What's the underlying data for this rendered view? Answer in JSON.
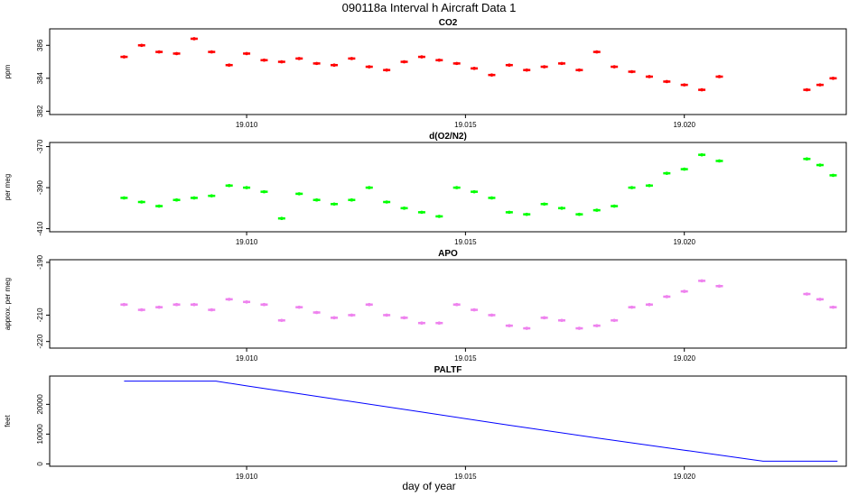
{
  "title": "090118a   Interval h Aircraft Data 1",
  "xlabel": "day of year",
  "chart_data": [
    {
      "type": "scatter",
      "title": "CO2",
      "ylabel": "ppm",
      "color": "#ff0000",
      "xlim": [
        19.0055,
        19.0237
      ],
      "ylim": [
        381.8,
        387.0
      ],
      "yticks": [
        "382",
        "384",
        "386"
      ],
      "xticks": [
        "19.010",
        "19.015",
        "19.020"
      ],
      "series": [
        {
          "x": [
            19.0072,
            19.0076,
            19.008,
            19.0084,
            19.0088,
            19.0092,
            19.0096,
            19.01,
            19.0104,
            19.0108,
            19.0112,
            19.0116,
            19.012,
            19.0124,
            19.0128,
            19.0132,
            19.0136,
            19.014,
            19.0144,
            19.0148,
            19.0152,
            19.0156,
            19.016,
            19.0164,
            19.0168,
            19.0172,
            19.0176,
            19.018,
            19.0184,
            19.0188,
            19.0192,
            19.0196,
            19.02,
            19.0204,
            19.0208,
            19.0228,
            19.0231,
            19.0234
          ],
          "y": [
            385.3,
            386.0,
            385.6,
            385.5,
            386.4,
            385.6,
            384.8,
            385.5,
            385.1,
            385.0,
            385.2,
            384.9,
            384.8,
            385.2,
            384.7,
            384.5,
            385.0,
            385.3,
            385.1,
            384.9,
            384.6,
            384.2,
            384.8,
            384.5,
            384.7,
            384.9,
            384.5,
            385.6,
            384.7,
            384.4,
            384.1,
            383.8,
            383.6,
            383.3,
            384.1,
            383.3,
            383.6,
            384.0
          ]
        }
      ]
    },
    {
      "type": "scatter",
      "title": "d(O2/N2)",
      "ylabel": "per meg",
      "color": "#00ff00",
      "xlim": [
        19.0055,
        19.0237
      ],
      "ylim": [
        -411.5,
        -368.0
      ],
      "yticks": [
        "-410",
        "-390",
        "-370"
      ],
      "xticks": [
        "19.010",
        "19.015",
        "19.020"
      ],
      "series": [
        {
          "x": [
            19.0072,
            19.0076,
            19.008,
            19.0084,
            19.0088,
            19.0092,
            19.0096,
            19.01,
            19.0104,
            19.0108,
            19.0112,
            19.0116,
            19.012,
            19.0124,
            19.0128,
            19.0132,
            19.0136,
            19.014,
            19.0144,
            19.0148,
            19.0152,
            19.0156,
            19.016,
            19.0164,
            19.0168,
            19.0172,
            19.0176,
            19.018,
            19.0184,
            19.0188,
            19.0192,
            19.0196,
            19.02,
            19.0204,
            19.0208,
            19.0228,
            19.0231,
            19.0234
          ],
          "y": [
            -395,
            -397,
            -399,
            -396,
            -395,
            -394,
            -389,
            -390,
            -392,
            -405,
            -393,
            -396,
            -398,
            -396,
            -390,
            -397,
            -400,
            -402,
            -404,
            -390,
            -392,
            -395,
            -402,
            -403,
            -398,
            -400,
            -403,
            -401,
            -399,
            -390,
            -389,
            -383,
            -381,
            -374,
            -377,
            -376,
            -379,
            -384
          ]
        }
      ]
    },
    {
      "type": "scatter",
      "title": "APO",
      "ylabel": "approx. per meg",
      "color": "#ee82ee",
      "xlim": [
        19.0055,
        19.0237
      ],
      "ylim": [
        -222.5,
        -189.0
      ],
      "yticks": [
        "-220",
        "-210",
        "-190"
      ],
      "xticks": [
        "19.010",
        "19.015",
        "19.020"
      ],
      "series": [
        {
          "x": [
            19.0072,
            19.0076,
            19.008,
            19.0084,
            19.0088,
            19.0092,
            19.0096,
            19.01,
            19.0104,
            19.0108,
            19.0112,
            19.0116,
            19.012,
            19.0124,
            19.0128,
            19.0132,
            19.0136,
            19.014,
            19.0144,
            19.0148,
            19.0152,
            19.0156,
            19.016,
            19.0164,
            19.0168,
            19.0172,
            19.0176,
            19.018,
            19.0184,
            19.0188,
            19.0192,
            19.0196,
            19.02,
            19.0204,
            19.0208,
            19.0228,
            19.0231,
            19.0234
          ],
          "y": [
            -206,
            -208,
            -207,
            -206,
            -206,
            -208,
            -204,
            -205,
            -206,
            -212,
            -207,
            -209,
            -211,
            -210,
            -206,
            -210,
            -211,
            -213,
            -213,
            -206,
            -208,
            -210,
            -214,
            -215,
            -211,
            -212,
            -215,
            -214,
            -212,
            -207,
            -206,
            -203,
            -201,
            -197,
            -199,
            -202,
            -204,
            -207
          ]
        }
      ]
    },
    {
      "type": "line",
      "title": "PALTF",
      "ylabel": "feet",
      "color": "#0000ff",
      "xlim": [
        19.0055,
        19.0237
      ],
      "ylim": [
        -800,
        29500
      ],
      "yticks": [
        "0",
        "10000",
        "20000"
      ],
      "xticks": [
        "19.010",
        "19.015",
        "19.020"
      ],
      "series": [
        {
          "x": [
            19.0072,
            19.0093,
            19.01,
            19.012,
            19.014,
            19.016,
            19.018,
            19.02,
            19.0218,
            19.0228,
            19.0235
          ],
          "y": [
            27800,
            27800,
            26200,
            21800,
            17400,
            13000,
            8700,
            4600,
            900,
            900,
            900
          ]
        }
      ]
    }
  ]
}
